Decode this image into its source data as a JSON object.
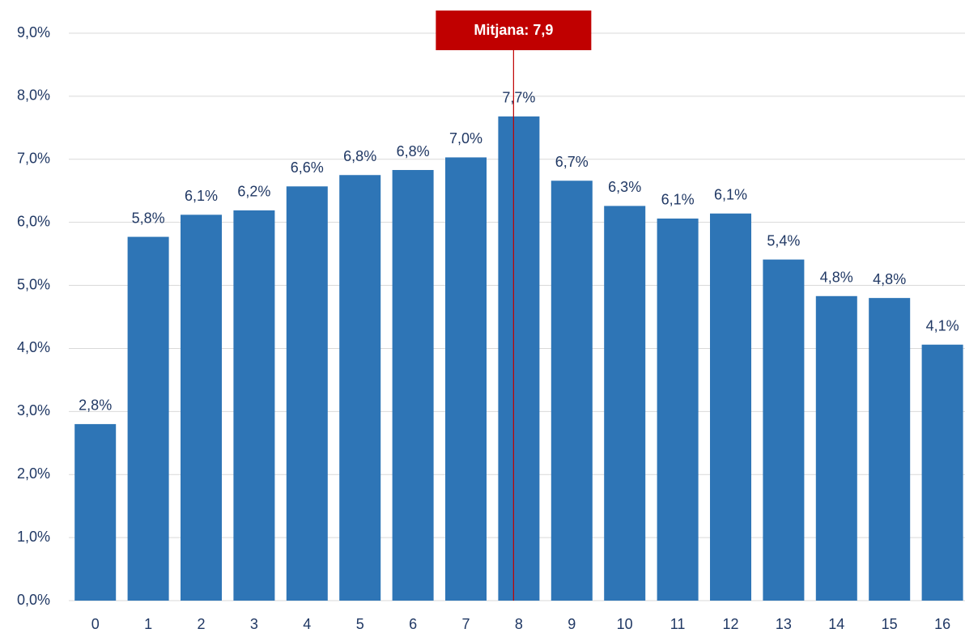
{
  "chart_data": {
    "type": "bar",
    "categories": [
      "0",
      "1",
      "2",
      "3",
      "4",
      "5",
      "6",
      "7",
      "8",
      "9",
      "10",
      "11",
      "12",
      "13",
      "14",
      "15",
      "16"
    ],
    "values": [
      2.8,
      5.77,
      6.12,
      6.19,
      6.57,
      6.75,
      6.83,
      7.03,
      7.68,
      6.66,
      6.26,
      6.06,
      6.14,
      5.41,
      4.83,
      4.8,
      4.06
    ],
    "value_labels": [
      "2,8%",
      "5,8%",
      "6,1%",
      "6,2%",
      "6,6%",
      "6,8%",
      "6,8%",
      "7,0%",
      "7,7%",
      "6,7%",
      "6,3%",
      "6,1%",
      "6,1%",
      "5,4%",
      "4,8%",
      "4,8%",
      "4,1%"
    ],
    "color": "#2e75b6",
    "ylim": [
      0,
      9
    ],
    "yticks": [
      {
        "value": 0,
        "label": "0,0%"
      },
      {
        "value": 1,
        "label": "1,0%"
      },
      {
        "value": 2,
        "label": "2,0%"
      },
      {
        "value": 3,
        "label": "3,0%"
      },
      {
        "value": 4,
        "label": "4,0%"
      },
      {
        "value": 5,
        "label": "5,0%"
      },
      {
        "value": 6,
        "label": "6,0%"
      },
      {
        "value": 7,
        "label": "7,0%"
      },
      {
        "value": 8,
        "label": "8,0%"
      },
      {
        "value": 9,
        "label": "9,0%"
      }
    ],
    "grid": true,
    "annotation": {
      "label": "Mitjana: 7,9",
      "x": 7.9,
      "color": "#c00000"
    }
  }
}
